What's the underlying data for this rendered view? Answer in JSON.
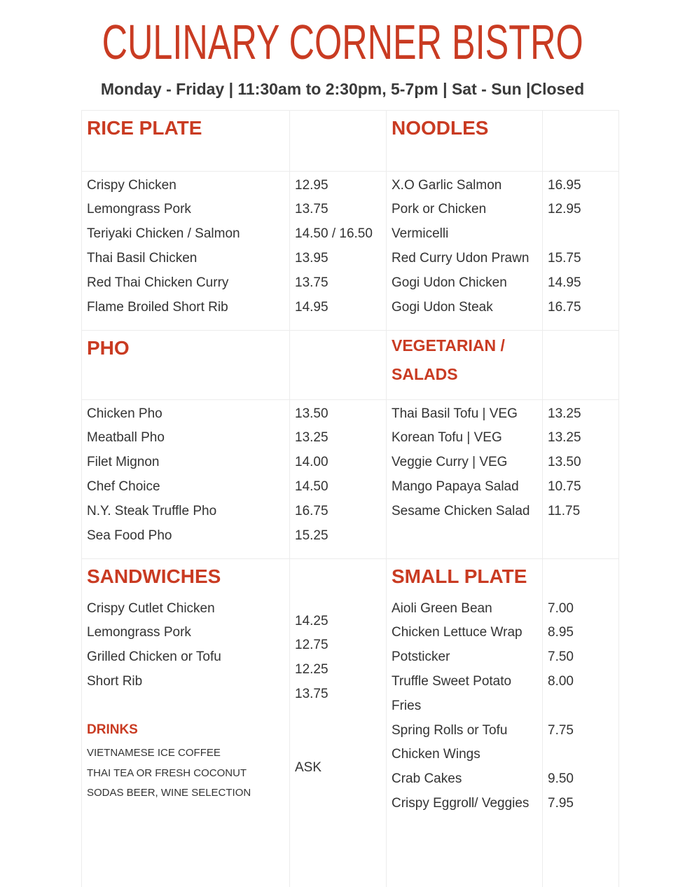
{
  "title": "CULINARY CORNER BISTRO",
  "hours": "Monday - Friday | 11:30am to 2:30pm, 5-7pm | Sat - Sun |Closed",
  "colors": {
    "accent": "#c93b22",
    "text": "#333333",
    "grid": "#ececec"
  },
  "sections": {
    "rice_plate": {
      "heading": "RICE PLATE",
      "items": [
        {
          "name": "Crispy Chicken",
          "price": "12.95"
        },
        {
          "name": "Lemongrass Pork",
          "price": "13.75"
        },
        {
          "name": "Teriyaki Chicken / Salmon",
          "price": "14.50 / 16.50"
        },
        {
          "name": "Thai Basil Chicken",
          "price": "13.95"
        },
        {
          "name": "Red Thai Chicken Curry",
          "price": "13.75"
        },
        {
          "name": "Flame Broiled Short Rib",
          "price": "14.95"
        }
      ]
    },
    "noodles": {
      "heading": "NOODLES",
      "items": [
        {
          "name": "X.O Garlic Salmon",
          "price": "16.95"
        },
        {
          "name": "Pork or Chicken",
          "price": "12.95"
        },
        {
          "name": "Vermicelli",
          "price": ""
        },
        {
          "name": "Red Curry Udon Prawn",
          "price": "15.75"
        },
        {
          "name": "Gogi Udon Chicken",
          "price": "14.95"
        },
        {
          "name": "Gogi Udon Steak",
          "price": "16.75"
        }
      ]
    },
    "pho": {
      "heading": "PHO",
      "items": [
        {
          "name": "Chicken Pho",
          "price": "13.50"
        },
        {
          "name": "Meatball Pho",
          "price": "13.25"
        },
        {
          "name": "Filet Mignon",
          "price": "14.00"
        },
        {
          "name": "Chef Choice",
          "price": "14.50"
        },
        {
          "name": "N.Y. Steak Truffle Pho",
          "price": "16.75"
        },
        {
          "name": "Sea Food Pho",
          "price": "15.25"
        }
      ]
    },
    "vegetarian": {
      "heading_lines": [
        "VEGETARIAN /",
        "SALADS"
      ],
      "items": [
        {
          "name": "Thai Basil Tofu | VEG",
          "price": "13.25"
        },
        {
          "name": "Korean Tofu | VEG",
          "price": "13.25"
        },
        {
          "name": "Veggie Curry | VEG",
          "price": "13.50"
        },
        {
          "name": "Mango Papaya Salad",
          "price": "10.75"
        },
        {
          "name": "Sesame Chicken Salad",
          "price": "11.75"
        }
      ]
    },
    "sandwiches": {
      "heading": "SANDWICHES",
      "items": [
        "Crispy Cutlet Chicken",
        "Lemongrass Pork",
        "Grilled Chicken or Tofu",
        "Short Rib"
      ],
      "prices": [
        "14.25",
        "12.75",
        "12.25",
        "13.75"
      ]
    },
    "drinks": {
      "heading": "DRINKS",
      "items": [
        "VIETNAMESE ICE COFFEE",
        "THAI TEA OR FRESH COCONUT",
        "SODAS BEER, WINE SELECTION"
      ],
      "price": "ASK"
    },
    "small_plate": {
      "heading": "SMALL PLATE",
      "items": [
        {
          "name": "Aioli Green Bean",
          "price": "7.00"
        },
        {
          "name": "Chicken Lettuce Wrap",
          "price": "8.95"
        },
        {
          "name": "Potsticker",
          "price": "7.50"
        },
        {
          "name": "Truffle Sweet Potato",
          "price": "8.00"
        },
        {
          "name": "Fries",
          "price": ""
        },
        {
          "name": "Spring Rolls or Tofu",
          "price": "7.75"
        },
        {
          "name": "Chicken Wings",
          "price": ""
        },
        {
          "name": "Crab Cakes",
          "price": "9.50"
        },
        {
          "name": "Crispy Eggroll/ Veggies",
          "price": "7.95"
        }
      ]
    }
  }
}
